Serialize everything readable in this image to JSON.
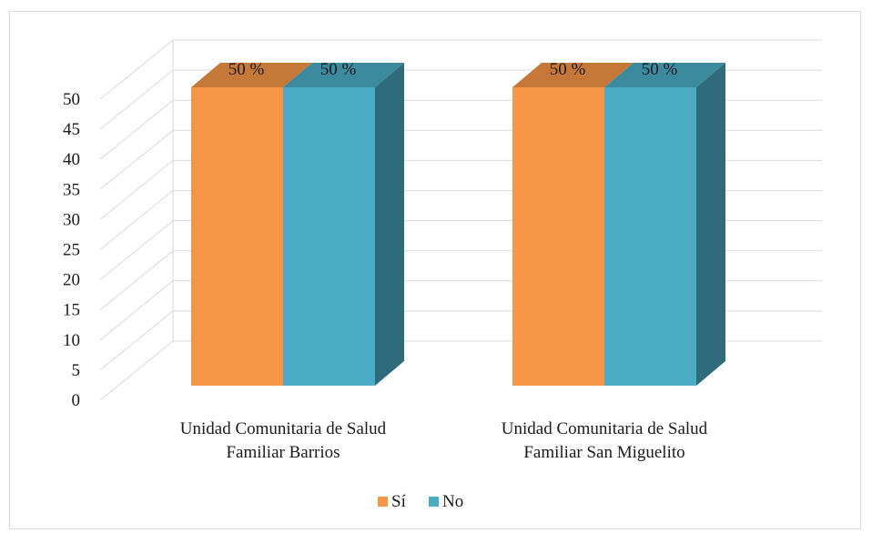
{
  "chart_data": {
    "type": "bar",
    "title": "",
    "xlabel": "",
    "ylabel": "",
    "ylim": [
      0,
      50
    ],
    "y_ticks": [
      "0",
      "5",
      "10",
      "15",
      "20",
      "25",
      "30",
      "35",
      "40",
      "45",
      "50"
    ],
    "categories": [
      [
        "Unidad Comunitaria de Salud",
        "Familiar Barrios"
      ],
      [
        "Unidad Comunitaria de Salud",
        "Familiar San Miguelito"
      ]
    ],
    "series": [
      {
        "name": "Sí",
        "values": [
          50,
          50
        ],
        "labels": [
          "50 %",
          "50 %"
        ],
        "color": "#f79646"
      },
      {
        "name": "No",
        "values": [
          50,
          50
        ],
        "labels": [
          "50 %",
          "50 %"
        ],
        "color": "#4bacc6"
      }
    ],
    "legend_position": "bottom",
    "grid": true,
    "style": "3d-clustered-column"
  }
}
